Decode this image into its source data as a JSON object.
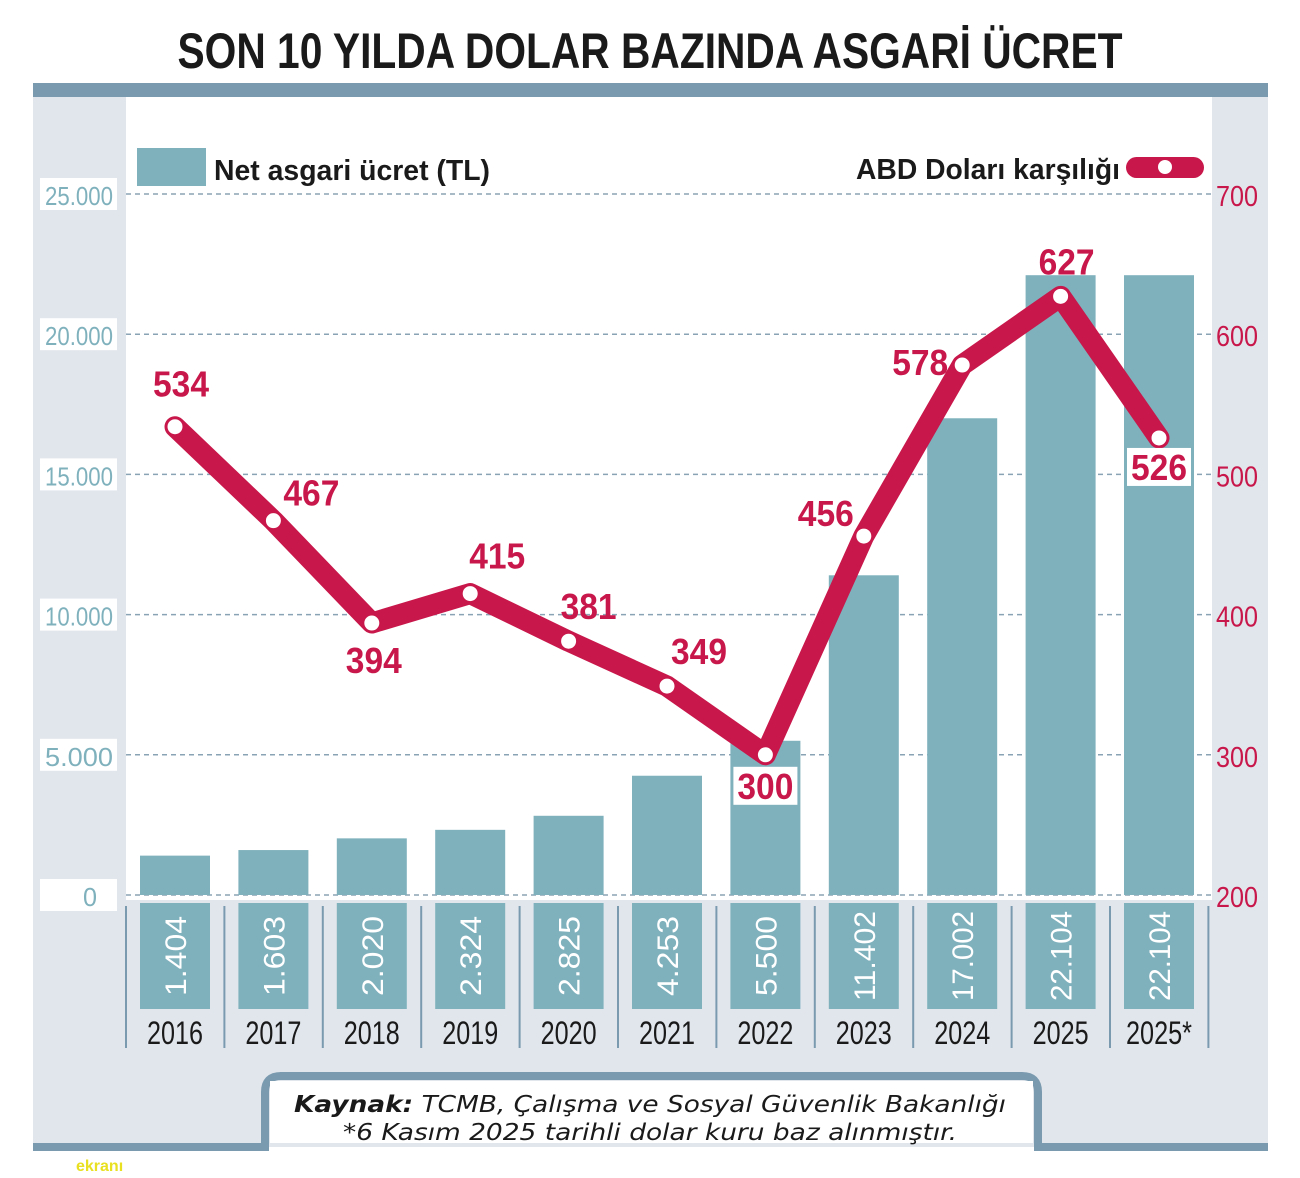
{
  "chart_data": {
    "type": "bar+line",
    "title": "SON 10 YILDA DOLAR BAZINDA ASGARİ ÜCRET",
    "categories": [
      "2016",
      "2017",
      "2018",
      "2019",
      "2020",
      "2021",
      "2022",
      "2023",
      "2024",
      "2025",
      "2025*"
    ],
    "series": [
      {
        "name": "Net asgari ücret (TL)",
        "type": "bar",
        "axis": "left",
        "values": [
          1404,
          1603,
          2020,
          2324,
          2825,
          4253,
          5500,
          11402,
          17002,
          22104,
          22104
        ],
        "labels": [
          "1.404",
          "1.603",
          "2.020",
          "2.324",
          "2.825",
          "4.253",
          "5.500",
          "11.402",
          "17.002",
          "22.104",
          "22.104"
        ],
        "color": "#7fb1bd"
      },
      {
        "name": "ABD Doları karşılığı",
        "type": "line",
        "axis": "right",
        "values": [
          534,
          467,
          394,
          415,
          381,
          349,
          300,
          456,
          578,
          627,
          526
        ],
        "labels": [
          "534",
          "467",
          "394",
          "415",
          "381",
          "349",
          "300",
          "456",
          "578",
          "627",
          "526"
        ],
        "color": "#c8174a"
      }
    ],
    "left_axis": {
      "ylim": [
        0,
        25000
      ],
      "ticks": [
        "0",
        "5.000",
        "10.000",
        "15.000",
        "20.000",
        "25.000"
      ]
    },
    "right_axis": {
      "ylim": [
        200,
        700
      ],
      "ticks": [
        "200",
        "300",
        "400",
        "500",
        "600",
        "700"
      ]
    },
    "grid": "dashed horizontal",
    "legend": "top"
  },
  "footer": {
    "source_label": "Kaynak:",
    "source_text": " TCMB, Çalışma ve Sosyal Güvenlik Bakanlığı",
    "note": "*6 Kasım 2025 tarihli dolar kuru baz alınmıştır."
  },
  "watermark": "ekranı",
  "colors": {
    "frame": "#7a9aaf",
    "panel": "#e1e6ec",
    "bar": "#7fb1bd",
    "line": "#c8174a"
  }
}
